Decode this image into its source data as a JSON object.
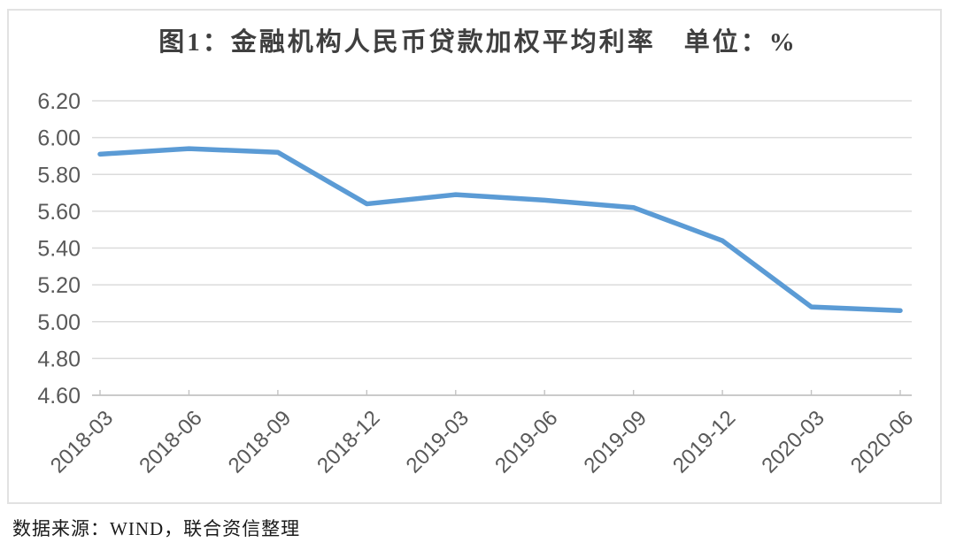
{
  "title": "图1：金融机构人民币贷款加权平均利率　单位：%",
  "source": "数据来源：WIND，联合资信整理",
  "chart_data": {
    "type": "line",
    "title": "图1：金融机构人民币贷款加权平均利率　单位：%",
    "categories": [
      "2018-03",
      "2018-06",
      "2018-09",
      "2018-12",
      "2019-03",
      "2019-06",
      "2019-09",
      "2019-12",
      "2020-03",
      "2020-06"
    ],
    "series": [
      {
        "name": "金融机构人民币贷款加权平均利率",
        "values": [
          5.91,
          5.94,
          5.92,
          5.64,
          5.69,
          5.66,
          5.62,
          5.44,
          5.08,
          5.06
        ]
      }
    ],
    "unit": "%",
    "xlabel": "",
    "ylabel": "",
    "ylim": [
      4.6,
      6.2
    ],
    "ytick_step": 0.2,
    "yticks": [
      "4.60",
      "4.80",
      "5.00",
      "5.20",
      "5.40",
      "5.60",
      "5.80",
      "6.00",
      "6.20"
    ],
    "grid": true,
    "legend": "none",
    "colors": {
      "line": "#5B9BD5",
      "grid": "#DBDBDB",
      "axis": "#C3C3C3",
      "tick_label": "#595959",
      "title_text": "#3F3F3F",
      "source_text": "#1A1A1A",
      "frame_border": "#E2E2E2"
    }
  }
}
